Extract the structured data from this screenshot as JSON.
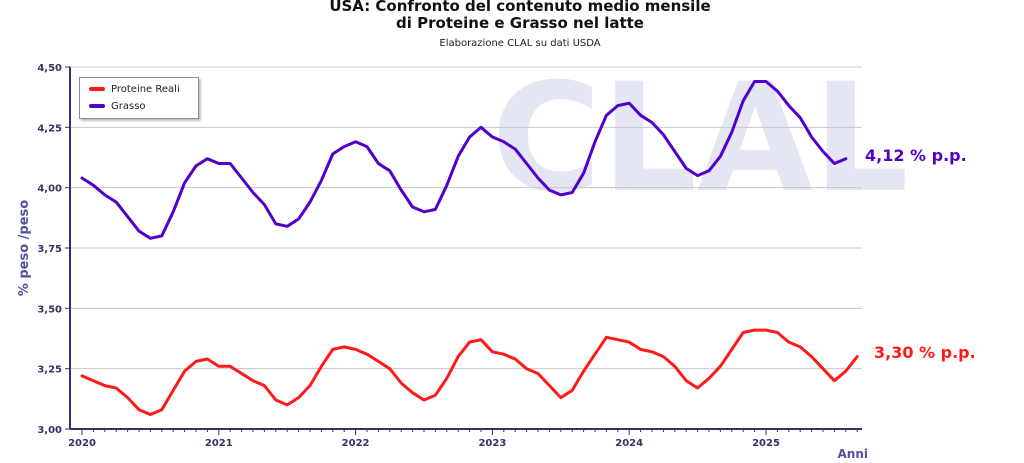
{
  "title_line1": "USA: Confronto del contenuto medio mensile",
  "title_line2": "di Proteine e Grasso nel latte",
  "subtitle": "Elaborazione CLAL su dati USDA",
  "watermark": "CLAL",
  "end_labels": {
    "grasso": "4,12 % p.p.",
    "proteine": "3,30 % p.p."
  },
  "colors": {
    "grasso": "#5200cc",
    "proteine": "#ff1a1a",
    "axis": "#333366",
    "grid": "#c8c8c8",
    "watermark": "#e4e6f3"
  },
  "chart_data": {
    "type": "line",
    "title": "USA: Confronto del contenuto medio mensile di Proteine e Grasso nel latte",
    "subtitle": "Elaborazione CLAL su dati USDA",
    "xlabel": "Anni",
    "ylabel": "% peso /peso",
    "x_start": "2020-01",
    "x_tick_labels": [
      "2020",
      "2021",
      "2022",
      "2023",
      "2024",
      "2025"
    ],
    "y_tick_labels": [
      "3,00",
      "3,25",
      "3,50",
      "3,75",
      "4,00",
      "4,25",
      "4,50"
    ],
    "ylim": [
      3.0,
      4.5
    ],
    "grid": "horizontal",
    "legend": "top-left",
    "series": [
      {
        "name": "Proteine Reali",
        "color": "#ff1a1a",
        "values": [
          3.22,
          3.2,
          3.18,
          3.17,
          3.13,
          3.08,
          3.06,
          3.08,
          3.16,
          3.24,
          3.28,
          3.29,
          3.26,
          3.26,
          3.23,
          3.2,
          3.18,
          3.12,
          3.1,
          3.13,
          3.18,
          3.26,
          3.33,
          3.34,
          3.33,
          3.31,
          3.28,
          3.25,
          3.19,
          3.15,
          3.12,
          3.14,
          3.21,
          3.3,
          3.36,
          3.37,
          3.32,
          3.31,
          3.29,
          3.25,
          3.23,
          3.18,
          3.13,
          3.16,
          3.24,
          3.31,
          3.38,
          3.37,
          3.36,
          3.33,
          3.32,
          3.3,
          3.26,
          3.2,
          3.17,
          3.21,
          3.26,
          3.33,
          3.4,
          3.41,
          3.41,
          3.4,
          3.36,
          3.34,
          3.3,
          3.25,
          3.2,
          3.24,
          3.3
        ]
      },
      {
        "name": "Grasso",
        "color": "#5200cc",
        "values": [
          4.04,
          4.01,
          3.97,
          3.94,
          3.88,
          3.82,
          3.79,
          3.8,
          3.9,
          4.02,
          4.09,
          4.12,
          4.1,
          4.1,
          4.04,
          3.98,
          3.93,
          3.85,
          3.84,
          3.87,
          3.94,
          4.03,
          4.14,
          4.17,
          4.19,
          4.17,
          4.1,
          4.07,
          3.99,
          3.92,
          3.9,
          3.91,
          4.01,
          4.13,
          4.21,
          4.25,
          4.21,
          4.19,
          4.16,
          4.1,
          4.04,
          3.99,
          3.97,
          3.98,
          4.06,
          4.19,
          4.3,
          4.34,
          4.35,
          4.3,
          4.27,
          4.22,
          4.15,
          4.08,
          4.05,
          4.07,
          4.13,
          4.23,
          4.36,
          4.44,
          4.44,
          4.4,
          4.34,
          4.29,
          4.21,
          4.15,
          4.1,
          4.12
        ]
      }
    ]
  }
}
